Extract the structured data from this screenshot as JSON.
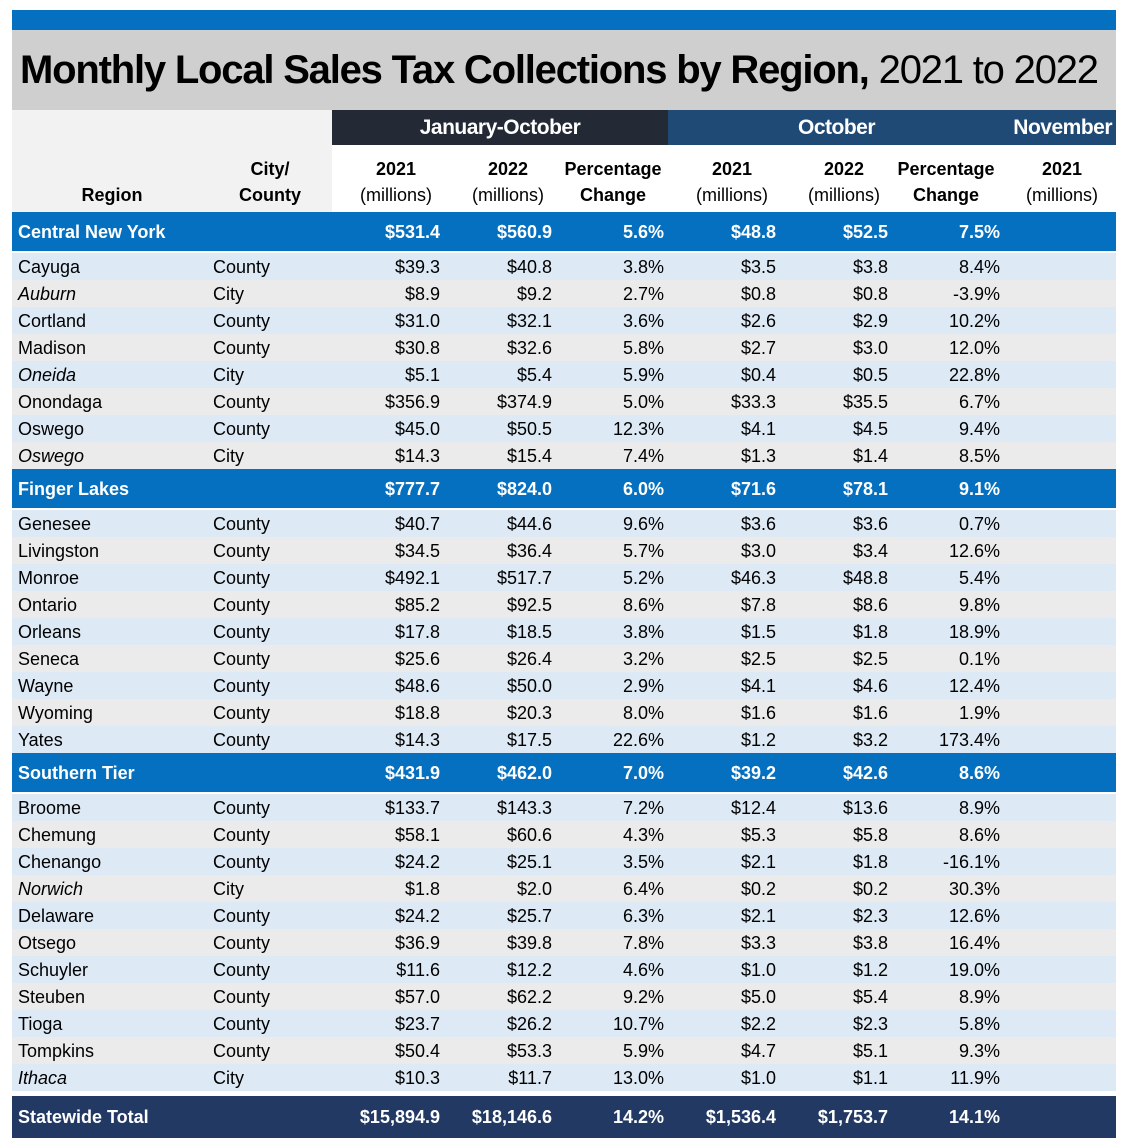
{
  "title": {
    "bold": "Monthly Local Sales Tax Collections by Region,",
    "rest": "2021 to 2022"
  },
  "bands": {
    "jan_oct": "January-October",
    "october": "October",
    "november": "November"
  },
  "headers": {
    "region": "Region",
    "city_county_1": "City/",
    "city_county_2": "County",
    "y2021": "2021",
    "y2022": "2022",
    "millions": "(millions)",
    "pct1": "Percentage",
    "pct2": "Change"
  },
  "colors": {
    "region_row": "#0570c0",
    "total_row": "#223964",
    "jan_oct_band": "#232a36",
    "october_band": "#1f4a75"
  },
  "regions": [
    {
      "name": "Central New York",
      "values": [
        "$531.4",
        "$560.9",
        "5.6%",
        "$48.8",
        "$52.5",
        "7.5%"
      ],
      "rows": [
        {
          "name": "Cayuga",
          "type": "County",
          "values": [
            "$39.3",
            "$40.8",
            "3.8%",
            "$3.5",
            "$3.8",
            "8.4%"
          ]
        },
        {
          "name": "Auburn",
          "type": "City",
          "values": [
            "$8.9",
            "$9.2",
            "2.7%",
            "$0.8",
            "$0.8",
            "-3.9%"
          ]
        },
        {
          "name": "Cortland",
          "type": "County",
          "values": [
            "$31.0",
            "$32.1",
            "3.6%",
            "$2.6",
            "$2.9",
            "10.2%"
          ]
        },
        {
          "name": "Madison",
          "type": "County",
          "values": [
            "$30.8",
            "$32.6",
            "5.8%",
            "$2.7",
            "$3.0",
            "12.0%"
          ]
        },
        {
          "name": "Oneida",
          "type": "City",
          "values": [
            "$5.1",
            "$5.4",
            "5.9%",
            "$0.4",
            "$0.5",
            "22.8%"
          ]
        },
        {
          "name": "Onondaga",
          "type": "County",
          "values": [
            "$356.9",
            "$374.9",
            "5.0%",
            "$33.3",
            "$35.5",
            "6.7%"
          ]
        },
        {
          "name": "Oswego",
          "type": "County",
          "values": [
            "$45.0",
            "$50.5",
            "12.3%",
            "$4.1",
            "$4.5",
            "9.4%"
          ]
        },
        {
          "name": "Oswego",
          "type": "City",
          "values": [
            "$14.3",
            "$15.4",
            "7.4%",
            "$1.3",
            "$1.4",
            "8.5%"
          ]
        }
      ]
    },
    {
      "name": "Finger Lakes",
      "values": [
        "$777.7",
        "$824.0",
        "6.0%",
        "$71.6",
        "$78.1",
        "9.1%"
      ],
      "rows": [
        {
          "name": "Genesee",
          "type": "County",
          "values": [
            "$40.7",
            "$44.6",
            "9.6%",
            "$3.6",
            "$3.6",
            "0.7%"
          ]
        },
        {
          "name": "Livingston",
          "type": "County",
          "values": [
            "$34.5",
            "$36.4",
            "5.7%",
            "$3.0",
            "$3.4",
            "12.6%"
          ]
        },
        {
          "name": "Monroe",
          "type": "County",
          "values": [
            "$492.1",
            "$517.7",
            "5.2%",
            "$46.3",
            "$48.8",
            "5.4%"
          ]
        },
        {
          "name": "Ontario",
          "type": "County",
          "values": [
            "$85.2",
            "$92.5",
            "8.6%",
            "$7.8",
            "$8.6",
            "9.8%"
          ]
        },
        {
          "name": "Orleans",
          "type": "County",
          "values": [
            "$17.8",
            "$18.5",
            "3.8%",
            "$1.5",
            "$1.8",
            "18.9%"
          ]
        },
        {
          "name": "Seneca",
          "type": "County",
          "values": [
            "$25.6",
            "$26.4",
            "3.2%",
            "$2.5",
            "$2.5",
            "0.1%"
          ]
        },
        {
          "name": "Wayne",
          "type": "County",
          "values": [
            "$48.6",
            "$50.0",
            "2.9%",
            "$4.1",
            "$4.6",
            "12.4%"
          ]
        },
        {
          "name": "Wyoming",
          "type": "County",
          "values": [
            "$18.8",
            "$20.3",
            "8.0%",
            "$1.6",
            "$1.6",
            "1.9%"
          ]
        },
        {
          "name": "Yates",
          "type": "County",
          "values": [
            "$14.3",
            "$17.5",
            "22.6%",
            "$1.2",
            "$3.2",
            "173.4%"
          ]
        }
      ]
    },
    {
      "name": "Southern Tier",
      "values": [
        "$431.9",
        "$462.0",
        "7.0%",
        "$39.2",
        "$42.6",
        "8.6%"
      ],
      "rows": [
        {
          "name": "Broome",
          "type": "County",
          "values": [
            "$133.7",
            "$143.3",
            "7.2%",
            "$12.4",
            "$13.6",
            "8.9%"
          ]
        },
        {
          "name": "Chemung",
          "type": "County",
          "values": [
            "$58.1",
            "$60.6",
            "4.3%",
            "$5.3",
            "$5.8",
            "8.6%"
          ]
        },
        {
          "name": "Chenango",
          "type": "County",
          "values": [
            "$24.2",
            "$25.1",
            "3.5%",
            "$2.1",
            "$1.8",
            "-16.1%"
          ]
        },
        {
          "name": "Norwich",
          "type": "City",
          "values": [
            "$1.8",
            "$2.0",
            "6.4%",
            "$0.2",
            "$0.2",
            "30.3%"
          ]
        },
        {
          "name": "Delaware",
          "type": "County",
          "values": [
            "$24.2",
            "$25.7",
            "6.3%",
            "$2.1",
            "$2.3",
            "12.6%"
          ]
        },
        {
          "name": "Otsego",
          "type": "County",
          "values": [
            "$36.9",
            "$39.8",
            "7.8%",
            "$3.3",
            "$3.8",
            "16.4%"
          ]
        },
        {
          "name": "Schuyler",
          "type": "County",
          "values": [
            "$11.6",
            "$12.2",
            "4.6%",
            "$1.0",
            "$1.2",
            "19.0%"
          ]
        },
        {
          "name": "Steuben",
          "type": "County",
          "values": [
            "$57.0",
            "$62.2",
            "9.2%",
            "$5.0",
            "$5.4",
            "8.9%"
          ]
        },
        {
          "name": "Tioga",
          "type": "County",
          "values": [
            "$23.7",
            "$26.2",
            "10.7%",
            "$2.2",
            "$2.3",
            "5.8%"
          ]
        },
        {
          "name": "Tompkins",
          "type": "County",
          "values": [
            "$50.4",
            "$53.3",
            "5.9%",
            "$4.7",
            "$5.1",
            "9.3%"
          ]
        },
        {
          "name": "Ithaca",
          "type": "City",
          "values": [
            "$10.3",
            "$11.7",
            "13.0%",
            "$1.0",
            "$1.1",
            "11.9%"
          ]
        }
      ]
    }
  ],
  "total": {
    "name": "Statewide Total",
    "values": [
      "$15,894.9",
      "$18,146.6",
      "14.2%",
      "$1,536.4",
      "$1,753.7",
      "14.1%"
    ]
  }
}
